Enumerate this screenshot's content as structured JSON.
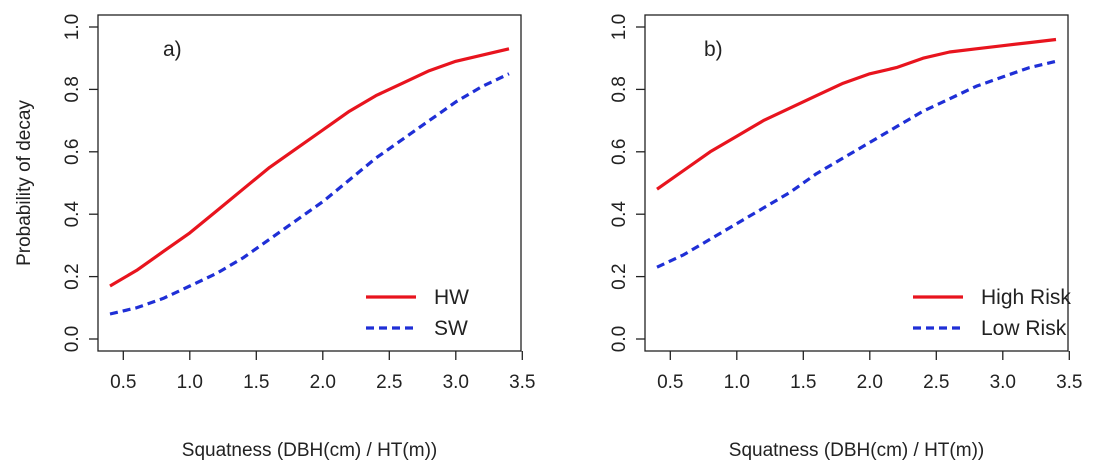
{
  "chart_data": [
    {
      "type": "line",
      "panel_label": "a)",
      "title": "",
      "xlabel": "Squatness (DBH(cm) / HT(m))",
      "ylabel": "Probability of decay",
      "xlim": [
        0.4,
        3.4
      ],
      "ylim": [
        0.0,
        1.0
      ],
      "x_ticks": [
        "0.5",
        "1.0",
        "1.5",
        "2.0",
        "2.5",
        "3.0",
        "3.5"
      ],
      "y_ticks": [
        "0.0",
        "0.2",
        "0.4",
        "0.6",
        "0.8",
        "1.0"
      ],
      "grid": false,
      "legend_position": "bottom-right",
      "series": [
        {
          "name": "HW",
          "color": "#e8141e",
          "style": "solid",
          "x": [
            0.4,
            0.6,
            0.8,
            1.0,
            1.2,
            1.4,
            1.6,
            1.8,
            2.0,
            2.2,
            2.4,
            2.6,
            2.8,
            3.0,
            3.2,
            3.4
          ],
          "y": [
            0.17,
            0.22,
            0.28,
            0.34,
            0.41,
            0.48,
            0.55,
            0.61,
            0.67,
            0.73,
            0.78,
            0.82,
            0.86,
            0.89,
            0.91,
            0.93
          ]
        },
        {
          "name": "SW",
          "color": "#1f2fd6",
          "style": "dashed",
          "x": [
            0.4,
            0.6,
            0.8,
            1.0,
            1.2,
            1.4,
            1.6,
            1.8,
            2.0,
            2.2,
            2.4,
            2.6,
            2.8,
            3.0,
            3.2,
            3.4
          ],
          "y": [
            0.08,
            0.1,
            0.13,
            0.17,
            0.21,
            0.26,
            0.32,
            0.38,
            0.44,
            0.51,
            0.58,
            0.64,
            0.7,
            0.76,
            0.81,
            0.85
          ]
        }
      ]
    },
    {
      "type": "line",
      "panel_label": "b)",
      "title": "",
      "xlabel": "Squatness (DBH(cm) / HT(m))",
      "ylabel": "",
      "xlim": [
        0.4,
        3.4
      ],
      "ylim": [
        0.0,
        1.0
      ],
      "x_ticks": [
        "0.5",
        "1.0",
        "1.5",
        "2.0",
        "2.5",
        "3.0",
        "3.5"
      ],
      "y_ticks": [
        "0.0",
        "0.2",
        "0.4",
        "0.6",
        "0.8",
        "1.0"
      ],
      "grid": false,
      "legend_position": "bottom-right",
      "series": [
        {
          "name": "High Risk",
          "color": "#e8141e",
          "style": "solid",
          "x": [
            0.4,
            0.6,
            0.8,
            1.0,
            1.2,
            1.4,
            1.6,
            1.8,
            2.0,
            2.2,
            2.4,
            2.6,
            2.8,
            3.0,
            3.2,
            3.4
          ],
          "y": [
            0.48,
            0.54,
            0.6,
            0.65,
            0.7,
            0.74,
            0.78,
            0.82,
            0.85,
            0.87,
            0.9,
            0.92,
            0.93,
            0.94,
            0.95,
            0.96
          ]
        },
        {
          "name": "Low Risk",
          "color": "#1f2fd6",
          "style": "dashed",
          "x": [
            0.4,
            0.6,
            0.8,
            1.0,
            1.2,
            1.4,
            1.6,
            1.8,
            2.0,
            2.2,
            2.4,
            2.6,
            2.8,
            3.0,
            3.2,
            3.4
          ],
          "y": [
            0.23,
            0.27,
            0.32,
            0.37,
            0.42,
            0.47,
            0.53,
            0.58,
            0.63,
            0.68,
            0.73,
            0.77,
            0.81,
            0.84,
            0.87,
            0.89
          ]
        }
      ]
    }
  ]
}
